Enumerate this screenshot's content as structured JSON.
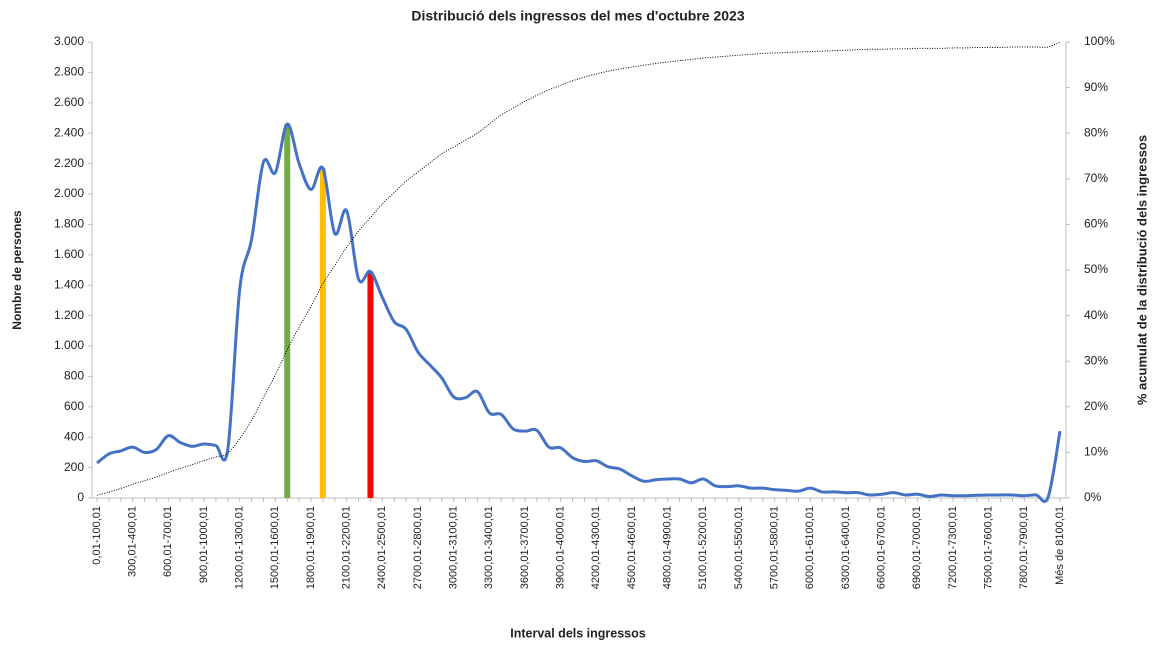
{
  "chart_data": {
    "type": "line",
    "title": "Distribució dels ingressos del mes d'octubre 2023",
    "x_label": "Interval dels ingressos",
    "y_label": "Nombre de persones",
    "y2_label": "% acumulat de la distribució  dels ingressos",
    "categories": [
      "0,01-100,01",
      null,
      null,
      "300,01-400,01",
      null,
      null,
      "600,01-700,01",
      null,
      null,
      "900,01-1000,01",
      null,
      null,
      "1200,01-1300,01",
      null,
      null,
      "1500,01-1600,01",
      null,
      null,
      "1800,01-1900,01",
      null,
      null,
      "2100,01-2200,01",
      null,
      null,
      "2400,01-2500,01",
      null,
      null,
      "2700,01-2800,01",
      null,
      null,
      "3000,01-3100,01",
      null,
      null,
      "3300,01-3400,01",
      null,
      null,
      "3600,01-3700,01",
      null,
      null,
      "3900,01-4000,01",
      null,
      null,
      "4200,01-4300,01",
      null,
      null,
      "4500,01-4600,01",
      null,
      null,
      "4800,01-4900,01",
      null,
      null,
      "5100,01-5200,01",
      null,
      null,
      "5400,01-5500,01",
      null,
      null,
      "5700,01-5800,01",
      null,
      null,
      "6000,01-6100,01",
      null,
      null,
      "6300,01-6400,01",
      null,
      null,
      "6600,01-6700,01",
      null,
      null,
      "6900,01-7000,01",
      null,
      null,
      "7200,01-7300,01",
      null,
      null,
      "7500,01-7600,01",
      null,
      null,
      "7800,01-7900,01",
      null,
      null,
      "Més de 8100,01"
    ],
    "series": [
      {
        "color": "#4472c4",
        "axis": "y",
        "style": "solid",
        "values": [
          230,
          290,
          310,
          335,
          300,
          320,
          410,
          365,
          340,
          355,
          345,
          320,
          1370,
          1700,
          2210,
          2140,
          2460,
          2200,
          2030,
          2170,
          1740,
          1890,
          1440,
          1490,
          1320,
          1160,
          1110,
          960,
          875,
          790,
          665,
          660,
          700,
          560,
          550,
          455,
          440,
          445,
          335,
          330,
          265,
          240,
          245,
          205,
          190,
          145,
          110,
          120,
          125,
          125,
          100,
          125,
          80,
          75,
          80,
          65,
          65,
          55,
          50,
          45,
          65,
          40,
          40,
          35,
          35,
          20,
          25,
          35,
          20,
          25,
          10,
          20,
          15,
          15,
          18,
          20,
          20,
          20,
          15,
          20,
          5,
          440
        ]
      },
      {
        "color": "#000000",
        "axis": "y2",
        "style": "dotted",
        "values": [
          0.6,
          1.3,
          2.1,
          3,
          3.8,
          4.6,
          5.6,
          6.5,
          7.3,
          8.2,
          9,
          9.8,
          13,
          17,
          22,
          27,
          32.5,
          37.5,
          42,
          47,
          51,
          55,
          58.5,
          61.5,
          64.5,
          67,
          69.5,
          71.5,
          73.5,
          75.5,
          77,
          78.5,
          80,
          82,
          84,
          85.5,
          87,
          88.3,
          89.5,
          90.5,
          91.5,
          92.3,
          93,
          93.6,
          94.1,
          94.5,
          94.9,
          95.3,
          95.6,
          95.9,
          96.2,
          96.5,
          96.7,
          96.9,
          97.1,
          97.3,
          97.5,
          97.6,
          97.7,
          97.8,
          97.9,
          98,
          98.1,
          98.2,
          98.3,
          98.4,
          98.4,
          98.5,
          98.5,
          98.6,
          98.6,
          98.6,
          98.7,
          98.7,
          98.8,
          98.8,
          98.8,
          98.9,
          98.9,
          98.9,
          98.9,
          100
        ]
      }
    ],
    "highlights": [
      {
        "index": 16,
        "value": 2460,
        "color": "#70ad47"
      },
      {
        "index": 19,
        "value": 2170,
        "color": "#ffc000"
      },
      {
        "index": 23,
        "value": 1490,
        "color": "#ff0000"
      }
    ],
    "ylim": [
      0,
      3000
    ],
    "yticks": [
      0,
      200,
      400,
      600,
      800,
      {
        "value": 1000,
        "label": "1.000"
      },
      {
        "value": 1200,
        "label": "1.200"
      },
      {
        "value": 1400,
        "label": "1.400"
      },
      {
        "value": 1600,
        "label": "1.600"
      },
      {
        "value": 1800,
        "label": "1.800"
      },
      {
        "value": 2000,
        "label": "2.000"
      },
      {
        "value": 2200,
        "label": "2.200"
      },
      {
        "value": 2400,
        "label": "2.400"
      },
      {
        "value": 2600,
        "label": "2.600"
      },
      {
        "value": 2800,
        "label": "2.800"
      },
      {
        "value": 3000,
        "label": "3.000"
      }
    ],
    "y2lim": [
      0,
      100
    ],
    "y2ticks": [
      {
        "value": 0,
        "label": "0%"
      },
      {
        "value": 10,
        "label": "10%"
      },
      {
        "value": 20,
        "label": "20%"
      },
      {
        "value": 30,
        "label": "30%"
      },
      {
        "value": 40,
        "label": "40%"
      },
      {
        "value": 50,
        "label": "50%"
      },
      {
        "value": 60,
        "label": "60%"
      },
      {
        "value": 70,
        "label": "70%"
      },
      {
        "value": 80,
        "label": "80%"
      },
      {
        "value": 90,
        "label": "90%"
      },
      {
        "value": 100,
        "label": "100%"
      }
    ],
    "grid": false
  }
}
